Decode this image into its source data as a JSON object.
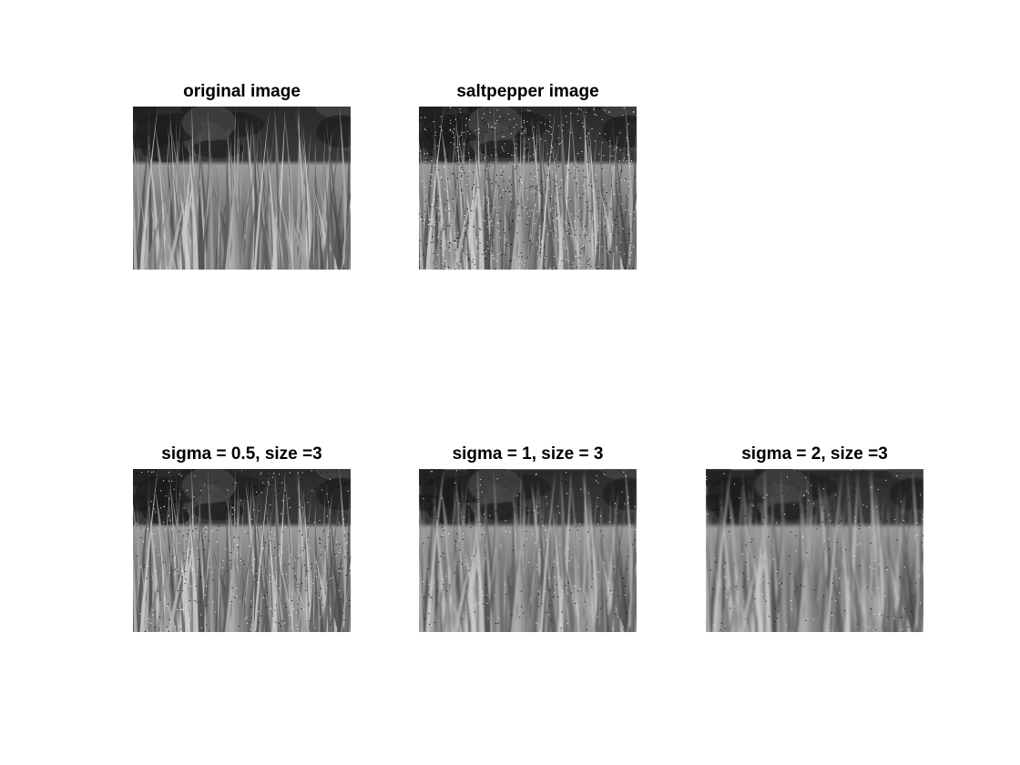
{
  "panels": [
    {
      "id": "p1",
      "title": "original image",
      "noise": 0,
      "blur": 0
    },
    {
      "id": "p2",
      "title": "saltpepper image",
      "noise": 1,
      "blur": 0
    },
    {
      "id": "p3",
      "title": "sigma = 0.5, size =3",
      "noise": 0.55,
      "blur": 0.3
    },
    {
      "id": "p4",
      "title": "sigma = 1, size = 3",
      "noise": 0.3,
      "blur": 0.8
    },
    {
      "id": "p5",
      "title": "sigma = 2, size =3",
      "noise": 0.25,
      "blur": 1.0
    }
  ]
}
